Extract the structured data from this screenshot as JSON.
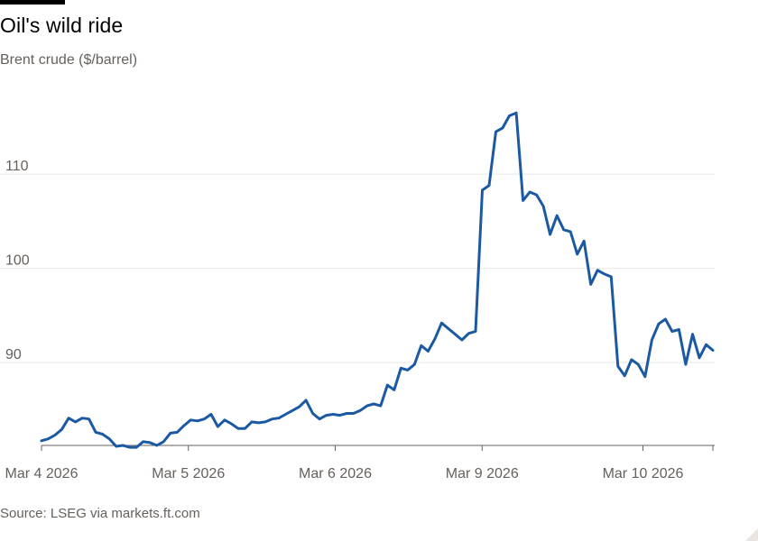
{
  "header": {
    "title": "Oil's wild ride",
    "subtitle": "Brent crude ($/barrel)"
  },
  "footer": {
    "source": "Source: LSEG via markets.ft.com"
  },
  "colors": {
    "line": "#1b5aa3",
    "grid": "#ebe7e3",
    "axis": "#66605c",
    "tick_text": "#66605c"
  },
  "chart_data": {
    "type": "line",
    "title": "Oil's wild ride",
    "subtitle": "Brent crude ($/barrel)",
    "xlabel": "",
    "ylabel": "",
    "grid": true,
    "legend": "none",
    "x_domain_points": [
      0,
      96
    ],
    "ylim": [
      81.2,
      117
    ],
    "yticks": [
      90,
      100,
      110
    ],
    "x_tick_points": [
      0,
      21,
      42,
      63,
      86
    ],
    "x_tick_labels": [
      "Mar 4 2026",
      "Mar 5 2026",
      "Mar 6 2026",
      "Mar 9 2026",
      "Mar 10 2026"
    ],
    "series": [
      {
        "values": [
          81.7,
          81.9,
          82.3,
          82.9,
          84.1,
          83.7,
          84.1,
          84.0,
          82.6,
          82.4,
          81.9,
          81.1,
          81.2,
          81.0,
          81.0,
          81.6,
          81.5,
          81.2,
          81.6,
          82.5,
          82.6,
          83.3,
          83.9,
          83.8,
          84.0,
          84.5,
          83.2,
          83.9,
          83.5,
          83.0,
          83.0,
          83.7,
          83.6,
          83.7,
          84.0,
          84.1,
          84.5,
          84.9,
          85.3,
          86.0,
          84.6,
          84.0,
          84.4,
          84.5,
          84.4,
          84.6,
          84.6,
          84.9,
          85.4,
          85.6,
          85.4,
          87.6,
          87.1,
          89.4,
          89.2,
          89.8,
          91.8,
          91.2,
          92.5,
          94.2,
          93.6,
          93.0,
          92.4,
          93.1,
          93.3,
          108.3,
          108.8,
          114.5,
          114.9,
          116.2,
          116.5,
          107.2,
          108.1,
          107.8,
          106.6,
          103.6,
          105.6,
          104.1,
          103.9,
          101.5,
          102.9,
          98.3,
          99.8,
          99.4,
          99.1,
          89.6,
          88.6,
          90.3,
          89.8,
          88.5,
          92.4,
          94.1,
          94.6,
          93.3,
          93.5,
          89.8,
          93.0,
          90.5,
          91.9,
          91.3
        ]
      }
    ]
  }
}
